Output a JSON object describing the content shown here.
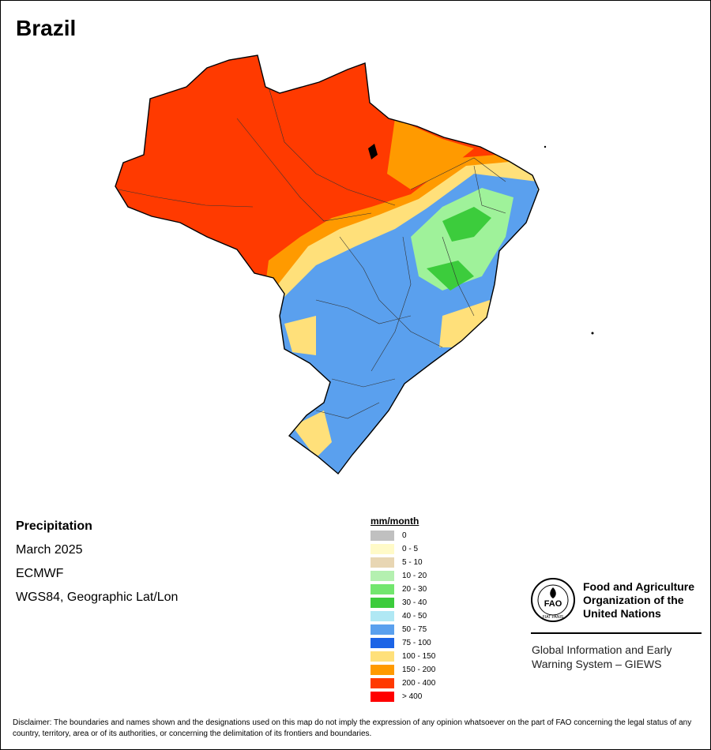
{
  "map": {
    "title": "Brazil",
    "layer": "Precipitation",
    "period": "March 2025",
    "source": "ECMWF",
    "projection": "WGS84, Geographic Lat/Lon",
    "colors": {
      "north_region": "#ff2a00",
      "transition": "#ffe27a",
      "northeast": "#9ff29a",
      "center_south": "#4a8fe8",
      "coast_band": "#ff9a00"
    }
  },
  "legend": {
    "title": "mm/month",
    "classes": [
      {
        "label": "0",
        "color": "#c0c0c0"
      },
      {
        "label": "0 - 5",
        "color": "#fffac8"
      },
      {
        "label": "5 - 10",
        "color": "#e8d6b3"
      },
      {
        "label": "10 - 20",
        "color": "#b4f0b0"
      },
      {
        "label": "20 - 30",
        "color": "#72e66e"
      },
      {
        "label": "30 - 40",
        "color": "#3ccc3c"
      },
      {
        "label": "40 - 50",
        "color": "#b0e8f4"
      },
      {
        "label": "50 - 75",
        "color": "#5aa0ee"
      },
      {
        "label": "75 - 100",
        "color": "#1c64e6"
      },
      {
        "label": "100 - 150",
        "color": "#ffe07a"
      },
      {
        "label": "150 - 200",
        "color": "#ff9a00"
      },
      {
        "label": "200 - 400",
        "color": "#ff3a00"
      },
      {
        "label": "> 400",
        "color": "#ff0000"
      }
    ]
  },
  "organization": {
    "name_lines": [
      "Food and Agriculture",
      "Organization of the",
      "United Nations"
    ],
    "logo_text": "FAO",
    "logo_motto": "FIAT PANIS",
    "system_lines": [
      "Global Information and Early",
      "Warning System – GIEWS"
    ]
  },
  "disclaimer": "Disclaimer: The boundaries and names shown and the designations used on this map do not imply the expression of any opinion whatsoever on the part of FAO concerning the legal status of any country, territory, area or of its authorities, or concerning the delimitation of its frontiers and boundaries."
}
